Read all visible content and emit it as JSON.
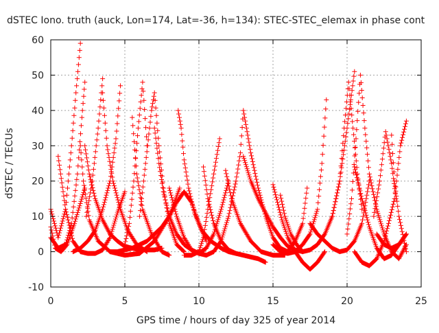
{
  "chart_data": {
    "type": "scatter",
    "title": "dSTEC Iono. truth (auck, Lon=174, Lat=-36, h=134): STEC-STEC_elemax in phase cont",
    "xlabel": "GPS time / hours of day 325 of year 2014",
    "ylabel": "dSTEC  / TECUs",
    "xlim": [
      0,
      25
    ],
    "ylim": [
      -10,
      60
    ],
    "xticks": [
      0,
      5,
      10,
      15,
      20,
      25
    ],
    "yticks": [
      -10,
      0,
      10,
      20,
      30,
      40,
      50,
      60
    ],
    "grid": true,
    "legend": "none",
    "marker": "+",
    "color": "#ff0000",
    "series": [
      {
        "x": [
          0.0,
          0.5,
          1.0,
          1.4,
          1.7,
          2.0
        ],
        "y": [
          12,
          4,
          12,
          30,
          45,
          59
        ]
      },
      {
        "x": [
          2.0,
          2.2,
          2.6,
          3.2,
          4.0,
          5.0,
          6.0,
          7.0,
          8.0,
          8.7
        ],
        "y": [
          30,
          20,
          9,
          3,
          0,
          -1,
          -0.5,
          3,
          10,
          18
        ]
      },
      {
        "x": [
          0.0,
          0.3,
          0.7,
          1.1,
          1.6,
          2.3
        ],
        "y": [
          7,
          1,
          0,
          2,
          8,
          18
        ]
      },
      {
        "x": [
          0.5,
          1.0,
          1.5,
          2.0,
          2.5,
          3.0,
          3.5,
          4.0,
          4.5,
          5.0
        ],
        "y": [
          27,
          12,
          3,
          0,
          -0.5,
          -0.5,
          0.5,
          4,
          11,
          17
        ]
      },
      {
        "x": [
          0.0,
          0.5,
          1.0,
          1.4,
          1.8,
          2.1,
          2.3
        ],
        "y": [
          4,
          1,
          2,
          8,
          22,
          38,
          48
        ]
      },
      {
        "x": [
          2.3,
          2.6,
          3.0,
          3.5,
          4.0,
          4.5,
          5.0,
          5.5,
          6.0,
          6.5,
          7.0,
          7.5
        ],
        "y": [
          30,
          22,
          15,
          9,
          5,
          3,
          1.5,
          1,
          0.5,
          0.5,
          0.5,
          1
        ]
      },
      {
        "x": [
          2.4,
          2.8,
          3.2,
          3.5
        ],
        "y": [
          10,
          20,
          35,
          49
        ]
      },
      {
        "x": [
          3.5,
          3.8,
          4.2,
          4.7,
          5.2,
          5.8,
          6.5
        ],
        "y": [
          45,
          30,
          20,
          12,
          6,
          2,
          0
        ]
      },
      {
        "x": [
          1.5,
          2.0,
          2.5,
          3.0,
          3.5,
          4.0,
          4.4,
          4.7
        ],
        "y": [
          0,
          1,
          3,
          6,
          12,
          20,
          32,
          47
        ]
      },
      {
        "x": [
          5.0,
          5.3,
          5.6,
          5.9,
          6.2,
          6.5
        ],
        "y": [
          2,
          8,
          20,
          35,
          48,
          30
        ]
      },
      {
        "x": [
          5.5,
          5.8,
          6.2,
          6.8,
          7.5,
          8.0
        ],
        "y": [
          38,
          22,
          12,
          5,
          0,
          -1
        ]
      },
      {
        "x": [
          4.0,
          4.5,
          5.0,
          5.5,
          6.0,
          6.5,
          7.0,
          7.5,
          8.0,
          8.5,
          9.0,
          9.5,
          10.0,
          10.5
        ],
        "y": [
          0,
          0,
          0.5,
          1,
          2,
          3,
          5,
          7,
          10,
          14,
          17,
          14,
          8,
          3
        ]
      },
      {
        "x": [
          6.0,
          6.4,
          6.8,
          7.0,
          7.3,
          7.6,
          8.0,
          8.5,
          9.0
        ],
        "y": [
          10,
          25,
          40,
          45,
          30,
          18,
          8,
          2,
          0
        ]
      },
      {
        "x": [
          7.0,
          7.3,
          7.6,
          8.0,
          8.5,
          9.0,
          9.5,
          10.0,
          10.5,
          11.0
        ],
        "y": [
          35,
          25,
          17,
          10,
          5,
          2,
          0.5,
          -0.5,
          -1,
          0
        ]
      },
      {
        "x": [
          8.6,
          8.8,
          9.0,
          9.3,
          9.7,
          10.2,
          10.8,
          11.5,
          12.0,
          12.5
        ],
        "y": [
          40,
          35,
          26,
          18,
          11,
          6,
          3,
          1,
          0,
          -0.5
        ]
      },
      {
        "x": [
          9.0,
          9.5,
          10.0,
          10.3,
          10.6,
          11.0,
          11.4
        ],
        "y": [
          -1,
          -1,
          0,
          4,
          12,
          22,
          32
        ]
      },
      {
        "x": [
          8.0,
          8.5,
          9.0,
          9.5,
          10.0,
          10.5,
          11.0,
          11.5,
          12.0
        ],
        "y": [
          18,
          10,
          4,
          0.5,
          -0.5,
          1,
          5,
          12,
          20
        ]
      },
      {
        "x": [
          10.3,
          10.6,
          11.0,
          11.5,
          12.0,
          12.5,
          13.0,
          13.5,
          14.0,
          14.5
        ],
        "y": [
          24,
          15,
          8,
          3,
          0.5,
          -0.5,
          -1,
          -1.5,
          -2,
          -3
        ]
      },
      {
        "x": [
          11.0,
          11.5,
          12.0,
          12.5,
          12.8,
          13.0,
          13.5,
          14.0,
          14.5,
          15.0,
          15.5,
          16.0
        ],
        "y": [
          0,
          3,
          10,
          20,
          28,
          40,
          28,
          18,
          10,
          4,
          1,
          0
        ]
      },
      {
        "x": [
          11.8,
          12.2,
          12.8,
          13.5,
          14.2,
          15.0,
          15.8
        ],
        "y": [
          23,
          15,
          8,
          3,
          0,
          -1,
          -1
        ]
      },
      {
        "x": [
          13.0,
          13.5,
          14.0,
          14.5,
          15.0,
          15.5,
          16.0,
          16.5,
          17.0
        ],
        "y": [
          27,
          20,
          15,
          11,
          7,
          4,
          1.5,
          0.5,
          0
        ]
      },
      {
        "x": [
          15.0,
          15.3,
          15.6,
          16.0,
          16.5,
          17.0,
          17.5,
          18.0,
          18.5
        ],
        "y": [
          19,
          14,
          9,
          4,
          0,
          -3,
          -5,
          -3,
          0
        ]
      },
      {
        "x": [
          15.5,
          15.8,
          16.2,
          16.6,
          17.0,
          17.5,
          18.0,
          18.5,
          19.0,
          19.5,
          20.0,
          20.5
        ],
        "y": [
          16,
          10,
          5,
          2,
          0,
          0.5,
          2,
          5,
          10,
          20,
          35,
          51
        ]
      },
      {
        "x": [
          15.0,
          15.5,
          16.0,
          16.5,
          17.0,
          17.5,
          18.0,
          18.3,
          18.6
        ],
        "y": [
          2,
          0,
          -0.5,
          0,
          2,
          5,
          12,
          25,
          43
        ]
      },
      {
        "x": [
          16.0,
          16.5,
          17.0,
          17.3
        ],
        "y": [
          0,
          3,
          8,
          18
        ]
      },
      {
        "x": [
          17.5,
          18.0,
          18.5,
          19.0,
          19.5,
          20.0,
          20.5,
          21.0,
          21.5
        ],
        "y": [
          8,
          5,
          3,
          1,
          0,
          0.5,
          3,
          8,
          20
        ]
      },
      {
        "x": [
          19.0,
          19.5,
          19.8,
          20.1,
          20.4,
          20.7,
          21.0
        ],
        "y": [
          10,
          20,
          35,
          48,
          35,
          22,
          12
        ]
      },
      {
        "x": [
          20.0,
          20.3,
          20.6,
          20.9,
          21.2,
          21.5,
          22.0,
          22.5,
          23.0,
          23.5,
          24.0
        ],
        "y": [
          5,
          15,
          32,
          50,
          35,
          22,
          12,
          5,
          0,
          -2,
          2
        ]
      },
      {
        "x": [
          20.5,
          21.0,
          21.5,
          22.0,
          22.5,
          23.0,
          23.5,
          24.0
        ],
        "y": [
          24,
          15,
          7,
          1,
          -2,
          -1,
          2,
          5
        ]
      },
      {
        "x": [
          20.5,
          21.0,
          21.5,
          22.0,
          22.5,
          22.8,
          23.2,
          23.6,
          24.0
        ],
        "y": [
          0,
          -3,
          -4,
          -2,
          3,
          8,
          15,
          30,
          37
        ]
      },
      {
        "x": [
          21.8,
          22.2,
          22.6,
          23.0,
          23.3
        ],
        "y": [
          10,
          20,
          34,
          25,
          15
        ]
      },
      {
        "x": [
          23.0,
          23.2,
          23.5,
          23.8,
          24.0
        ],
        "y": [
          33,
          20,
          10,
          4,
          0
        ]
      },
      {
        "x": [
          22.0,
          22.5,
          23.0,
          23.5,
          24.0
        ],
        "y": [
          5,
          2,
          1,
          2,
          5
        ]
      }
    ]
  }
}
